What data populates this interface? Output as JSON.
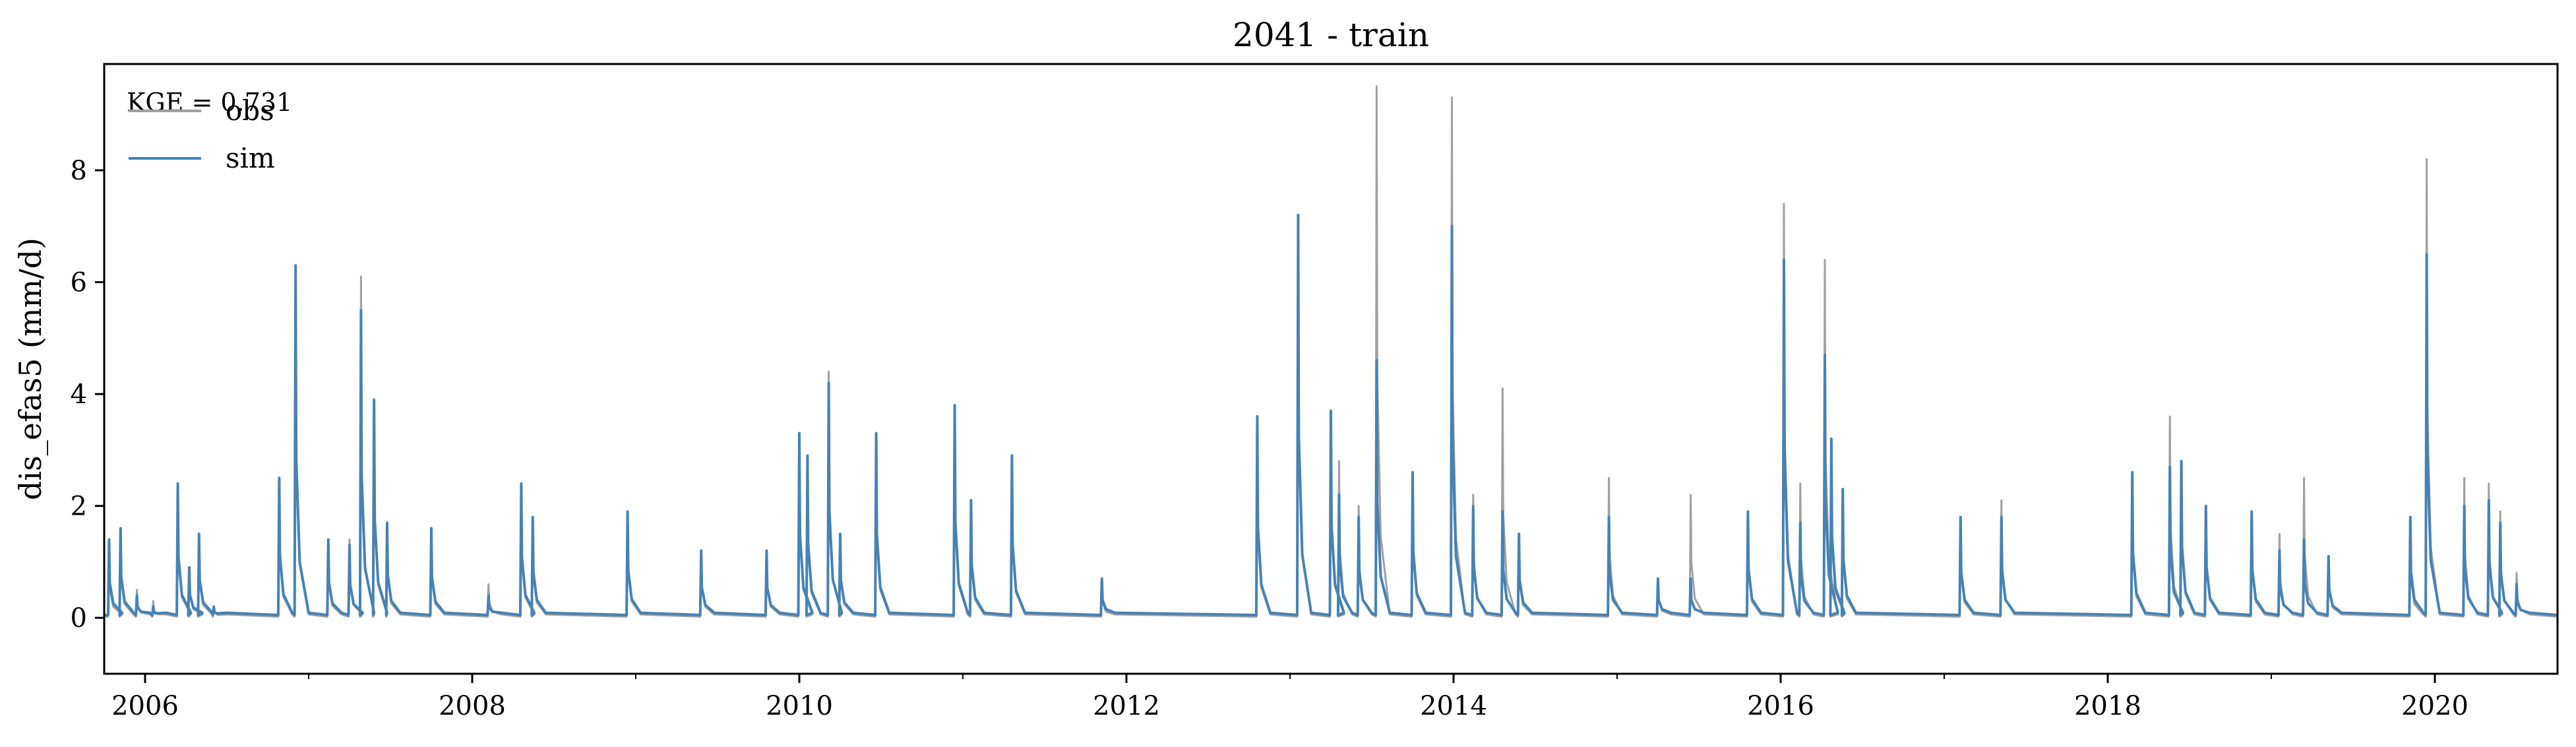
{
  "chart_data": {
    "type": "line",
    "title": "2041 - train",
    "xlabel": "",
    "ylabel": "dis_efas5 (mm/d)",
    "annotation": "KGE = 0.731",
    "xlim": [
      2005.75,
      2020.75
    ],
    "ylim": [
      -1,
      9.9
    ],
    "x_ticks": [
      2006,
      2008,
      2010,
      2012,
      2014,
      2016,
      2018,
      2020
    ],
    "x_tick_labels": [
      "2006",
      "2008",
      "2010",
      "2012",
      "2014",
      "2016",
      "2018",
      "2020"
    ],
    "x_minor_ticks": [
      2007,
      2009,
      2011,
      2013,
      2015,
      2017,
      2019
    ],
    "y_ticks": [
      0,
      2,
      4,
      6,
      8
    ],
    "y_tick_labels": [
      "0",
      "2",
      "4",
      "6",
      "8"
    ],
    "grid": false,
    "legend_position": "top-left",
    "series": [
      {
        "name": "obs",
        "color": "#a0a0a0",
        "baseline": 0.02,
        "x": [
          2005.78,
          2005.85,
          2005.95,
          2006.05,
          2006.2,
          2006.27,
          2006.33,
          2006.42,
          2006.82,
          2006.92,
          2007.12,
          2007.25,
          2007.32,
          2007.4,
          2007.48,
          2007.75,
          2008.1,
          2008.3,
          2008.37,
          2008.95,
          2009.4,
          2009.8,
          2010.0,
          2010.05,
          2010.18,
          2010.25,
          2010.47,
          2010.95,
          2011.05,
          2011.3,
          2011.85,
          2012.8,
          2013.05,
          2013.25,
          2013.3,
          2013.42,
          2013.53,
          2013.75,
          2013.99,
          2014.12,
          2014.3,
          2014.4,
          2014.95,
          2015.25,
          2015.45,
          2015.8,
          2016.02,
          2016.12,
          2016.27,
          2016.31,
          2016.38,
          2017.1,
          2017.35,
          2018.15,
          2018.38,
          2018.45,
          2018.6,
          2018.88,
          2019.05,
          2019.2,
          2019.35,
          2019.85,
          2019.95,
          2020.18,
          2020.33,
          2020.4,
          2020.5
        ],
        "y": [
          1.2,
          1.5,
          0.5,
          0.3,
          2.3,
          0.9,
          1.4,
          0.2,
          2.4,
          6.2,
          1.3,
          1.4,
          6.1,
          3.8,
          1.6,
          1.5,
          0.6,
          2.3,
          1.7,
          1.8,
          1.2,
          1.2,
          3.2,
          2.8,
          4.4,
          1.5,
          3.2,
          3.7,
          2.0,
          2.9,
          0.6,
          3.5,
          7.2,
          3.6,
          2.8,
          2.0,
          9.5,
          2.5,
          9.3,
          2.2,
          4.1,
          1.4,
          2.5,
          0.7,
          2.2,
          1.8,
          7.4,
          2.4,
          6.4,
          3.0,
          2.2,
          1.7,
          2.1,
          2.4,
          3.6,
          2.7,
          2.0,
          1.8,
          1.5,
          2.5,
          1.1,
          1.5,
          8.2,
          2.5,
          2.4,
          1.9,
          0.8
        ]
      },
      {
        "name": "sim",
        "color": "#4682b4",
        "baseline": 0.05,
        "x": [
          2005.78,
          2005.85,
          2005.95,
          2006.05,
          2006.2,
          2006.27,
          2006.33,
          2006.42,
          2006.82,
          2006.92,
          2007.12,
          2007.25,
          2007.32,
          2007.4,
          2007.48,
          2007.75,
          2008.1,
          2008.3,
          2008.37,
          2008.95,
          2009.4,
          2009.8,
          2010.0,
          2010.05,
          2010.18,
          2010.25,
          2010.47,
          2010.95,
          2011.05,
          2011.3,
          2011.85,
          2012.8,
          2013.05,
          2013.25,
          2013.3,
          2013.42,
          2013.53,
          2013.75,
          2013.99,
          2014.12,
          2014.3,
          2014.4,
          2014.95,
          2015.25,
          2015.45,
          2015.8,
          2016.02,
          2016.12,
          2016.27,
          2016.31,
          2016.38,
          2017.1,
          2017.35,
          2018.15,
          2018.38,
          2018.45,
          2018.6,
          2018.88,
          2019.05,
          2019.2,
          2019.35,
          2019.85,
          2019.95,
          2020.18,
          2020.33,
          2020.4,
          2020.5
        ],
        "y": [
          1.4,
          1.6,
          0.4,
          0.2,
          2.4,
          0.9,
          1.5,
          0.2,
          2.5,
          6.3,
          1.4,
          1.3,
          5.5,
          3.9,
          1.7,
          1.6,
          0.4,
          2.4,
          1.8,
          1.9,
          1.2,
          1.2,
          3.3,
          2.9,
          4.2,
          1.5,
          3.3,
          3.8,
          2.1,
          2.9,
          0.7,
          3.6,
          7.2,
          3.7,
          2.2,
          1.8,
          4.6,
          2.6,
          7.0,
          2.0,
          1.9,
          1.5,
          1.8,
          0.7,
          0.7,
          1.9,
          6.4,
          1.7,
          4.7,
          3.2,
          2.3,
          1.8,
          1.8,
          2.6,
          2.7,
          2.8,
          2.0,
          1.9,
          1.2,
          1.4,
          1.1,
          1.8,
          6.5,
          2.0,
          2.1,
          1.7,
          0.6
        ]
      }
    ]
  }
}
